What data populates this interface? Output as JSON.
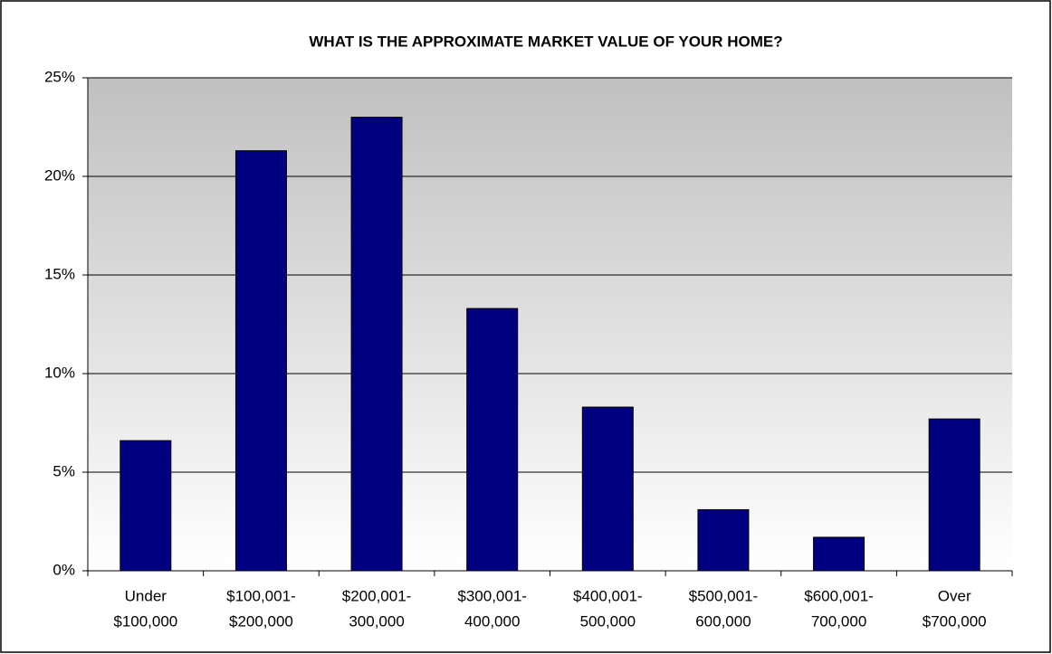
{
  "chart_data": {
    "type": "bar",
    "title": "WHAT IS THE APPROXIMATE MARKET VALUE OF YOUR HOME?",
    "categories": [
      [
        "Under",
        "$100,000"
      ],
      [
        "$100,001-",
        "$200,000"
      ],
      [
        "$200,001-",
        "300,000"
      ],
      [
        "$300,001-",
        "400,000"
      ],
      [
        "$400,001-",
        "500,000"
      ],
      [
        "$500,001-",
        "600,000"
      ],
      [
        "$600,001-",
        "700,000"
      ],
      [
        "Over",
        "$700,000"
      ]
    ],
    "values": [
      6.6,
      21.3,
      23.0,
      13.3,
      8.3,
      3.1,
      1.7,
      7.7
    ],
    "color": "#000080",
    "ylim": [
      0,
      25
    ],
    "yticks": [
      {
        "value": 0,
        "label": "0%"
      },
      {
        "value": 5,
        "label": "5%"
      },
      {
        "value": 10,
        "label": "10%"
      },
      {
        "value": 15,
        "label": "15%"
      },
      {
        "value": 20,
        "label": "20%"
      },
      {
        "value": 25,
        "label": "25%"
      }
    ],
    "grid": true
  }
}
